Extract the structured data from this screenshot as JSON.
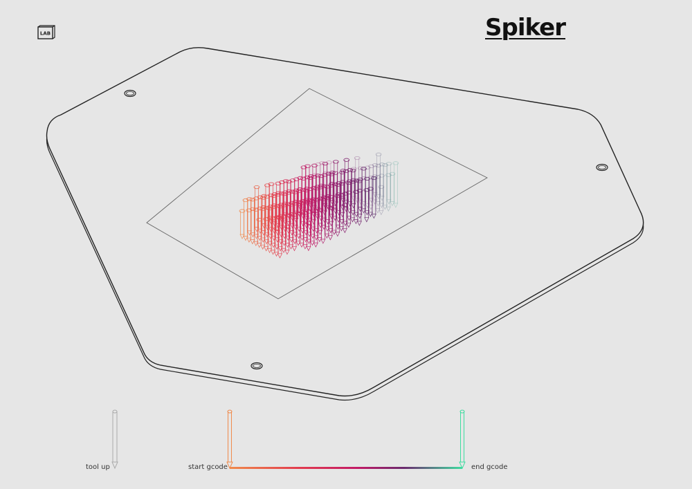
{
  "header": {
    "title": "Spiker",
    "logo_text": "LAB"
  },
  "legend": {
    "tool_up_label": "tool up",
    "start_label": "start gcode",
    "end_label": "end gcode",
    "gradient_colors": [
      "#f08a4b",
      "#e23b4e",
      "#c21a66",
      "#8a1e6e",
      "#5a2a6a",
      "#3fdca0"
    ]
  },
  "colors": {
    "background": "#e6e6e6",
    "plate_stroke": "#222222",
    "bed_outline": "#555555",
    "tool_up": "#bbbbbb"
  }
}
